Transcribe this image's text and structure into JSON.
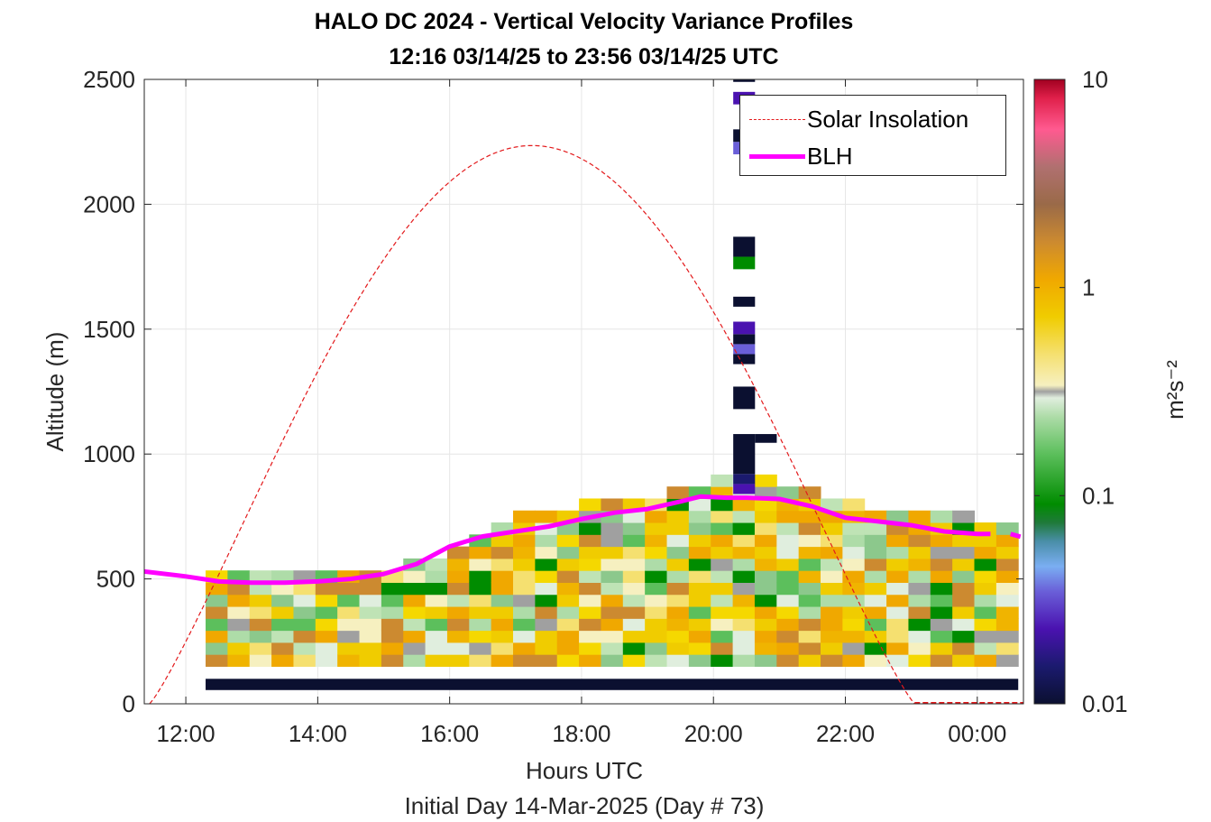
{
  "title_line1": "HALO DC 2024 - Vertical Velocity Variance Profiles",
  "title_line2": "12:16 03/14/25 to 23:56 03/14/25  UTC",
  "chart_data": {
    "type": "heatmap",
    "xlabel": "Hours UTC",
    "xlabel2": "Initial Day 14-Mar-2025 (Day # 73)",
    "ylabel": "Altitude (m)",
    "x_tick_labels": [
      "12:00",
      "14:00",
      "16:00",
      "18:00",
      "20:00",
      "22:00",
      "00:00"
    ],
    "x_ticks_hours": [
      12,
      14,
      16,
      18,
      20,
      22,
      24
    ],
    "xlim_hours": [
      11.37,
      24.7
    ],
    "y_tick_labels": [
      "0",
      "500",
      "1000",
      "1500",
      "2000",
      "2500"
    ],
    "ylim": [
      0,
      2500
    ],
    "grid": true,
    "colorbar": {
      "label": "m²s⁻²",
      "scale": "log",
      "range": [
        0.01,
        10
      ],
      "tick_labels": [
        "0.01",
        "0.1",
        "1",
        "10"
      ]
    },
    "legend": [
      {
        "name": "Solar Insolation",
        "color": "#e31a1c",
        "style": "dashed"
      },
      {
        "name": "BLH",
        "color": "#ff00ff",
        "style": "solid"
      }
    ],
    "legend_position": "top-right",
    "blh": {
      "hours": [
        11.37,
        12.0,
        12.5,
        13.0,
        13.5,
        14.0,
        14.5,
        15.0,
        15.5,
        16.0,
        16.5,
        17.0,
        17.5,
        18.0,
        18.5,
        19.0,
        19.5,
        19.8,
        20.2,
        20.5,
        21.0,
        21.5,
        22.0,
        22.5,
        23.0,
        23.5,
        24.0,
        24.2
      ],
      "altitude_m": [
        530,
        510,
        490,
        485,
        485,
        490,
        500,
        520,
        560,
        630,
        670,
        690,
        710,
        740,
        765,
        780,
        810,
        830,
        825,
        825,
        820,
        790,
        745,
        730,
        715,
        690,
        680,
        680
      ],
      "extra_point": {
        "hour": 24.6,
        "altitude_m": 680
      }
    },
    "solar_insolation": {
      "rise_hour": 11.45,
      "peak_hour": 17.25,
      "set_hour": 23.05,
      "peak_altitude_equiv_m": 2235
    },
    "variance_cells": {
      "time_step_h": 0.333,
      "first_hour": 12.3,
      "height_step_m": 48,
      "first_height_m": 150,
      "profile_tops_m": [
        520,
        520,
        520,
        520,
        520,
        520,
        520,
        520,
        520,
        560,
        560,
        600,
        640,
        700,
        760,
        760,
        760,
        800,
        800,
        800,
        800,
        850,
        850,
        900,
        900,
        900,
        850,
        850,
        810,
        810,
        760,
        760,
        760,
        760,
        760,
        700,
        700
      ]
    }
  }
}
